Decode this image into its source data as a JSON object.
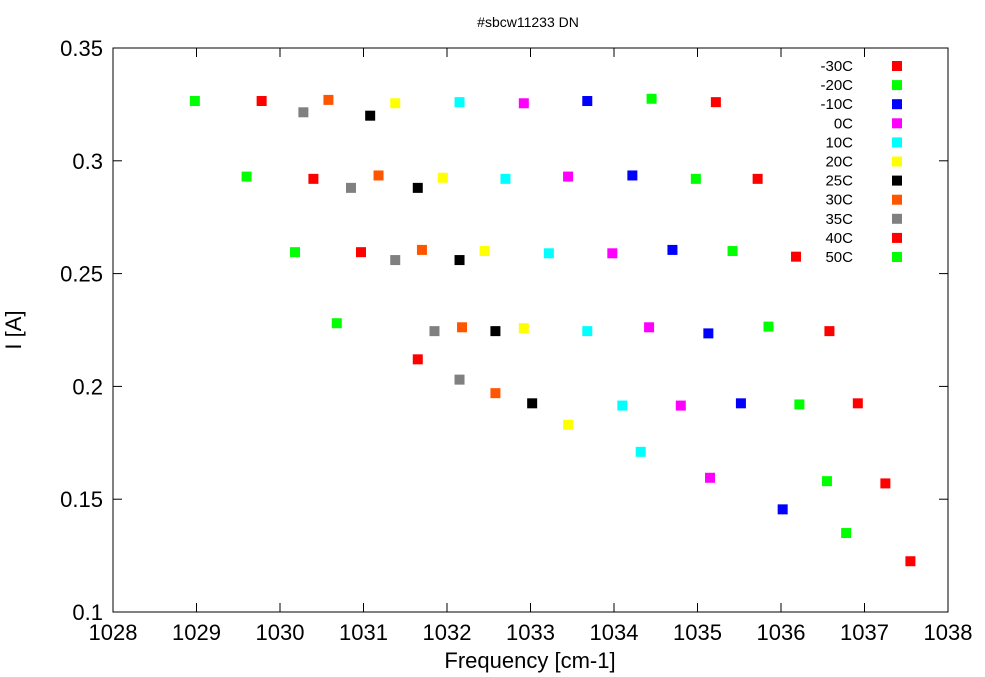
{
  "chart_data": {
    "type": "scatter",
    "title": "#sbcw11233 DN",
    "xlabel": "Frequency [cm-1]",
    "ylabel": "I [A]",
    "xlim": [
      1028,
      1038
    ],
    "ylim": [
      0.1,
      0.35
    ],
    "xticks": [
      "1028",
      "1029",
      "1030",
      "1031",
      "1032",
      "1033",
      "1034",
      "1035",
      "1036",
      "1037",
      "1038"
    ],
    "yticks": [
      "0.1",
      "0.15",
      "0.2",
      "0.25",
      "0.3",
      "0.35"
    ],
    "grid": false,
    "legend_position": "top-right",
    "series": [
      {
        "name": "-30C",
        "color": "#ff0000",
        "points": [
          [
            1037.55,
            0.1225
          ],
          [
            1037.25,
            0.157
          ],
          [
            1036.92,
            0.1925
          ],
          [
            1036.58,
            0.2245
          ],
          [
            1036.18,
            0.2575
          ],
          [
            1035.72,
            0.292
          ],
          [
            1035.22,
            0.326
          ]
        ]
      },
      {
        "name": "-20C",
        "color": "#00ff00",
        "points": [
          [
            1036.78,
            0.135
          ],
          [
            1036.55,
            0.158
          ],
          [
            1036.22,
            0.192
          ],
          [
            1035.85,
            0.2265
          ],
          [
            1035.42,
            0.26
          ],
          [
            1034.98,
            0.292
          ],
          [
            1034.45,
            0.3275
          ]
        ]
      },
      {
        "name": "-10C",
        "color": "#0000ff",
        "points": [
          [
            1036.02,
            0.1455
          ],
          [
            1035.52,
            0.1925
          ],
          [
            1035.13,
            0.2235
          ],
          [
            1034.7,
            0.2605
          ],
          [
            1034.22,
            0.2935
          ],
          [
            1033.68,
            0.3265
          ]
        ]
      },
      {
        "name": "0C",
        "color": "#ff00ff",
        "points": [
          [
            1035.15,
            0.1595
          ],
          [
            1034.8,
            0.1915
          ],
          [
            1034.42,
            0.2262
          ],
          [
            1033.98,
            0.259
          ],
          [
            1033.45,
            0.293
          ],
          [
            1032.92,
            0.3255
          ]
        ]
      },
      {
        "name": "10C",
        "color": "#00ffff",
        "points": [
          [
            1034.32,
            0.171
          ],
          [
            1034.1,
            0.1915
          ],
          [
            1033.68,
            0.2245
          ],
          [
            1033.22,
            0.259
          ],
          [
            1032.7,
            0.292
          ],
          [
            1032.15,
            0.326
          ]
        ]
      },
      {
        "name": "20C",
        "color": "#ffff00",
        "points": [
          [
            1033.45,
            0.183
          ],
          [
            1032.92,
            0.2258
          ],
          [
            1032.45,
            0.26
          ],
          [
            1031.95,
            0.2925
          ],
          [
            1031.38,
            0.3255
          ]
        ]
      },
      {
        "name": "25C",
        "color": "#000000",
        "points": [
          [
            1033.02,
            0.1925
          ],
          [
            1032.58,
            0.2245
          ],
          [
            1032.15,
            0.256
          ],
          [
            1031.65,
            0.288
          ],
          [
            1031.08,
            0.32
          ]
        ]
      },
      {
        "name": "30C",
        "color": "#ff5500",
        "points": [
          [
            1032.58,
            0.197
          ],
          [
            1032.18,
            0.2262
          ],
          [
            1031.7,
            0.2605
          ],
          [
            1031.18,
            0.2935
          ],
          [
            1030.58,
            0.327
          ]
        ]
      },
      {
        "name": "35C",
        "color": "#808080",
        "points": [
          [
            1032.15,
            0.203
          ],
          [
            1031.85,
            0.2245
          ],
          [
            1031.38,
            0.256
          ],
          [
            1030.85,
            0.288
          ],
          [
            1030.28,
            0.3215
          ]
        ]
      },
      {
        "name": "40C",
        "color": "#ff0000",
        "points": [
          [
            1031.65,
            0.212
          ],
          [
            1030.97,
            0.2595
          ],
          [
            1030.4,
            0.292
          ],
          [
            1029.78,
            0.3265
          ]
        ]
      },
      {
        "name": "50C",
        "color": "#00ff00",
        "points": [
          [
            1030.68,
            0.228
          ],
          [
            1030.18,
            0.2595
          ],
          [
            1029.6,
            0.293
          ],
          [
            1028.98,
            0.3265
          ]
        ]
      }
    ]
  }
}
